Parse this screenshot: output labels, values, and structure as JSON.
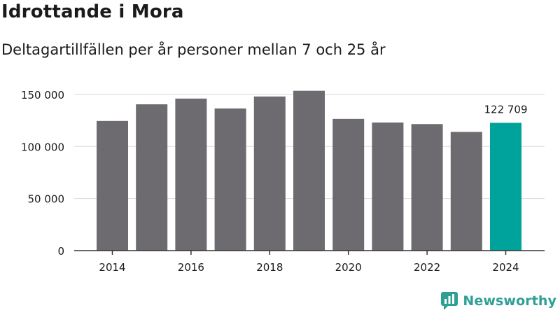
{
  "title": "Idrottande i Mora",
  "subtitle": "Deltagartillfällen per år personer mellan 7 och 25 år",
  "brand": {
    "name": "Newsworthy",
    "logo_icon": "newsworthy-logo-icon",
    "color": "#2f9f95"
  },
  "colors": {
    "bar": "#6d6b70",
    "highlight": "#00a39b",
    "grid": "#d9d9d9",
    "axis": "#333333",
    "text": "#1a1a1a"
  },
  "chart_data": {
    "type": "bar",
    "title": "Idrottande i Mora",
    "subtitle": "Deltagartillfällen per år personer mellan 7 och 25 år",
    "xlabel": "",
    "ylabel": "",
    "categories": [
      "2014",
      "2015",
      "2016",
      "2017",
      "2018",
      "2019",
      "2020",
      "2021",
      "2022",
      "2023",
      "2024"
    ],
    "values": [
      124500,
      140500,
      146000,
      136500,
      148000,
      153500,
      126500,
      123000,
      121500,
      114000,
      122709
    ],
    "x_tick_labels": [
      "2014",
      "2016",
      "2018",
      "2020",
      "2022",
      "2024"
    ],
    "y_ticks": [
      0,
      50000,
      100000,
      150000
    ],
    "y_tick_labels": [
      "0",
      "50 000",
      "100 000",
      "150 000"
    ],
    "ylim": [
      0,
      160000
    ],
    "grid": "horizontal",
    "highlight_index": 10,
    "data_labels": [
      {
        "index": 10,
        "text": "122 709"
      }
    ]
  }
}
